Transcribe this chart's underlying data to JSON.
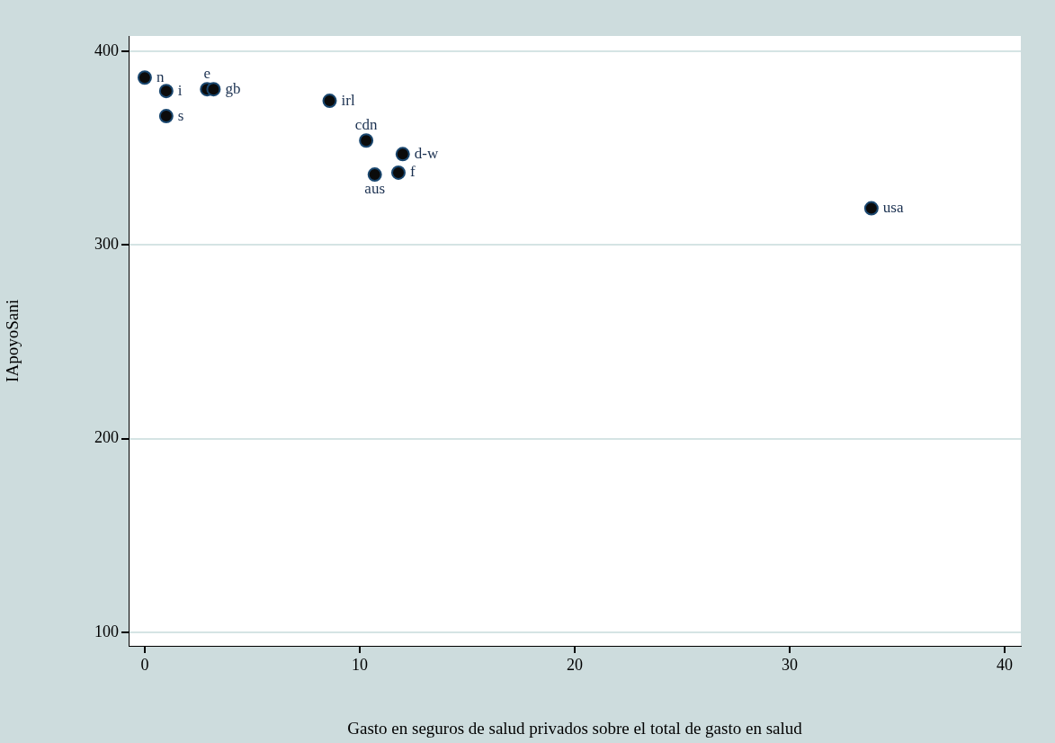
{
  "chart_data": {
    "type": "scatter",
    "xlabel": "Gasto en seguros de salud privados sobre el total de gasto en salud",
    "ylabel": "IApoyoSani",
    "x": [
      0,
      1.0,
      1.0,
      2.9,
      3.2,
      8.6,
      10.3,
      12.0,
      10.7,
      11.8,
      33.8
    ],
    "series": [
      {
        "color": "#1a476f",
        "values": [
          386.5,
          379.6,
          366.6,
          380.5,
          380.5,
          374.5,
          354,
          347,
          336.4,
          337.4,
          319
        ],
        "value_labels": [
          "n",
          "i",
          "s",
          "e",
          "gb",
          "irl",
          "cdn",
          "d-w",
          "aus",
          "f",
          "usa"
        ]
      }
    ],
    "xlim": [
      -0.75,
      40.75
    ],
    "xticks": [
      0,
      10,
      20,
      30,
      40
    ],
    "ylim": [
      93,
      408
    ],
    "yticks": [
      100,
      200,
      300,
      400
    ],
    "grid": "y",
    "legend": false,
    "marker": "circle"
  }
}
